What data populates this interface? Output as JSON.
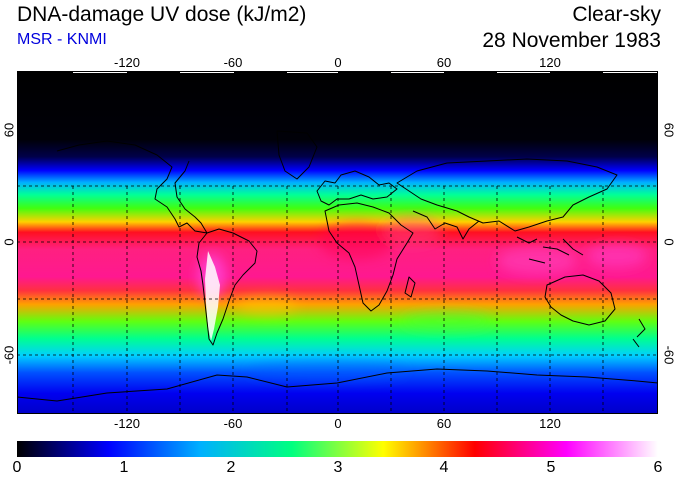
{
  "header": {
    "title": "DNA-damage UV dose (kJ/m2)",
    "subtitle": "MSR - KNMI",
    "sky": "Clear-sky",
    "date": "28 November 1983"
  },
  "map": {
    "lon_ticks": [
      "-120",
      "-60",
      "0",
      "60",
      "120"
    ],
    "lat_left": [
      "60",
      "0",
      "-60"
    ],
    "lat_right": [
      "60",
      "0",
      "-60"
    ],
    "colors": {
      "ocean_night": "#000000",
      "coast": "#000000",
      "grid": "#000000"
    }
  },
  "colorbar": {
    "min": 0,
    "max": 6,
    "ticks": [
      "0",
      "1",
      "2",
      "3",
      "4",
      "5",
      "6"
    ],
    "stops": [
      "#000000",
      "#0000ff",
      "#00b0ff",
      "#00ff80",
      "#ffff00",
      "#ff0000",
      "#ff00ff",
      "#ffffff"
    ]
  }
}
